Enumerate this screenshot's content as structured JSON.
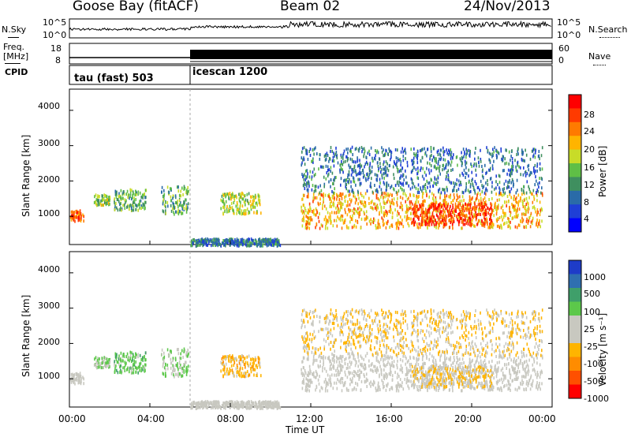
{
  "header": {
    "station": "Goose Bay (fitACF)",
    "beam": "Beam 02",
    "date": "24/Nov/2013"
  },
  "noise_panel": {
    "left_label": "N.Sky",
    "right_label": "N.Search",
    "left_ticks": [
      "10^5",
      "10^0"
    ],
    "right_ticks": [
      "10^5",
      "10^0"
    ]
  },
  "freq_panel": {
    "left_label_1": "Freq.",
    "left_label_2": "[MHz]",
    "right_label": "Nave",
    "left_ticks": [
      "18",
      "8"
    ],
    "right_ticks": [
      "60",
      "0"
    ]
  },
  "cpid": {
    "label": "CPID",
    "segments": [
      {
        "name": "tau (fast) 503",
        "start_hour": 0
      },
      {
        "name": "icescan 1200",
        "start_hour": 6
      }
    ]
  },
  "power_panel": {
    "ylabel": "Slant Range [km]",
    "yticks": [
      "4000",
      "3000",
      "2000",
      "1000"
    ],
    "colorbar_label": "Power [dB]",
    "colorbar_ticks": [
      "28",
      "24",
      "20",
      "16",
      "12",
      "8",
      "4"
    ],
    "colorbar_colors": [
      "#ff0000",
      "#ff3a00",
      "#ff7a00",
      "#ffb400",
      "#c8dc28",
      "#5fbf46",
      "#3f8f5f",
      "#2a6ba8",
      "#1f3fd6",
      "#0000ff"
    ]
  },
  "velocity_panel": {
    "ylabel": "Slant Range [km]",
    "yticks": [
      "4000",
      "3000",
      "2000",
      "1000"
    ],
    "colorbar_label": "Velocity [m s⁻¹]",
    "colorbar_ticks": [
      "1000",
      "500",
      "100",
      "25",
      "-25",
      "-100",
      "-500",
      "-1000"
    ],
    "colorbar_colors": [
      "#1e3cc8",
      "#2f6fb0",
      "#3f9f6a",
      "#5cc84a",
      "#c8c8c0",
      "#c8c8c0",
      "#ffb400",
      "#ff8c00",
      "#ff5000",
      "#ff0000"
    ]
  },
  "time_axis": {
    "xlabel": "Time UT",
    "ticks": [
      "00:00",
      "04:00",
      "08:00",
      "12:00",
      "16:00",
      "20:00",
      "00:00"
    ]
  },
  "chart_data": {
    "type": "heatmap",
    "panels": [
      "Power [dB]",
      "Velocity [m s⁻¹]"
    ],
    "x_range_hours": [
      0,
      24
    ],
    "y_range_km": [
      200,
      4600
    ],
    "power_range_db": [
      0,
      30
    ],
    "velocity_range_ms": [
      -1000,
      1000
    ],
    "cpid_change_hour": 6,
    "scatter_regions": [
      {
        "time_start": 0.0,
        "time_end": 0.7,
        "range_start": 900,
        "range_end": 1200,
        "power_db": 24,
        "velocity": 10
      },
      {
        "time_start": 1.2,
        "time_end": 2.0,
        "range_start": 1350,
        "range_end": 1650,
        "power_db": 14,
        "velocity": 200
      },
      {
        "time_start": 2.2,
        "time_end": 3.8,
        "range_start": 1200,
        "range_end": 1800,
        "power_db": 12,
        "velocity": 300
      },
      {
        "time_start": 4.5,
        "time_end": 5.9,
        "range_start": 1100,
        "range_end": 1900,
        "power_db": 12,
        "velocity": 200
      },
      {
        "time_start": 6.0,
        "time_end": 10.5,
        "range_start": 200,
        "range_end": 400,
        "power_db": 8,
        "velocity": -50
      },
      {
        "time_start": 7.5,
        "time_end": 9.5,
        "range_start": 1100,
        "range_end": 1700,
        "power_db": 16,
        "velocity": -300
      },
      {
        "time_start": 11.5,
        "time_end": 23.5,
        "range_start": 700,
        "range_end": 1700,
        "power_db": 20,
        "velocity": 0
      },
      {
        "time_start": 17.0,
        "time_end": 21.0,
        "range_start": 800,
        "range_end": 1400,
        "power_db": 26,
        "velocity": -200
      },
      {
        "time_start": 11.5,
        "time_end": 23.5,
        "range_start": 1700,
        "range_end": 3000,
        "power_db": 8,
        "velocity": -200
      }
    ]
  }
}
